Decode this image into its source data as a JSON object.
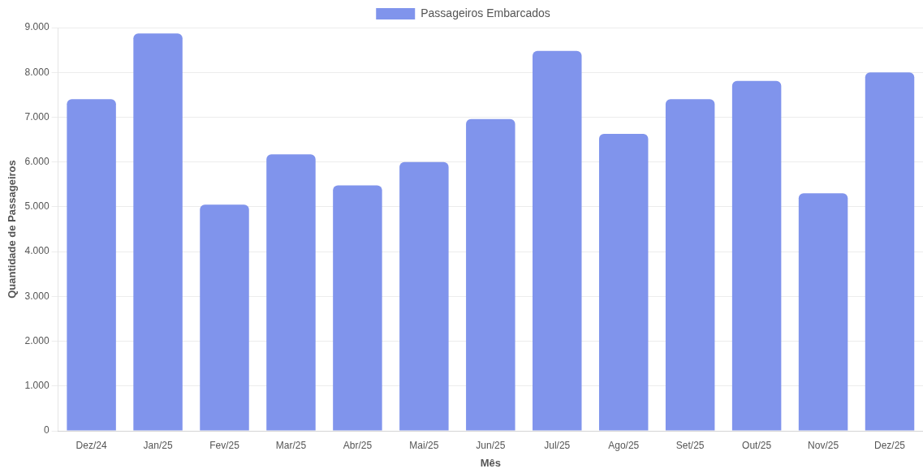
{
  "chart_data": {
    "type": "bar",
    "xlabel": "Mês",
    "ylabel": "Quantidade de Passageiros",
    "categories": [
      "Dez/24",
      "Jan/25",
      "Fev/25",
      "Mar/25",
      "Abr/25",
      "Mai/25",
      "Jun/25",
      "Jul/25",
      "Ago/25",
      "Set/25",
      "Out/25",
      "Nov/25",
      "Dez/25"
    ],
    "series": [
      {
        "name": "Passageiros Embarcados",
        "color": "#8094ec",
        "values": [
          7400,
          8870,
          5050,
          6170,
          5480,
          6000,
          6960,
          8480,
          6630,
          7400,
          7810,
          5300,
          8000
        ]
      }
    ],
    "ylim": [
      0,
      9000
    ],
    "yticks": [
      0,
      {
        "value": 1000,
        "label": "1.000"
      },
      {
        "value": 2000,
        "label": "2.000"
      },
      {
        "value": 3000,
        "label": "3.000"
      },
      {
        "value": 4000,
        "label": "4.000"
      },
      {
        "value": 5000,
        "label": "5.000"
      },
      {
        "value": 6000,
        "label": "6.000"
      },
      {
        "value": 7000,
        "label": "7.000"
      },
      {
        "value": 8000,
        "label": "8.000"
      },
      {
        "value": 9000,
        "label": "9.000"
      }
    ],
    "grid": "y",
    "legend": "top"
  }
}
